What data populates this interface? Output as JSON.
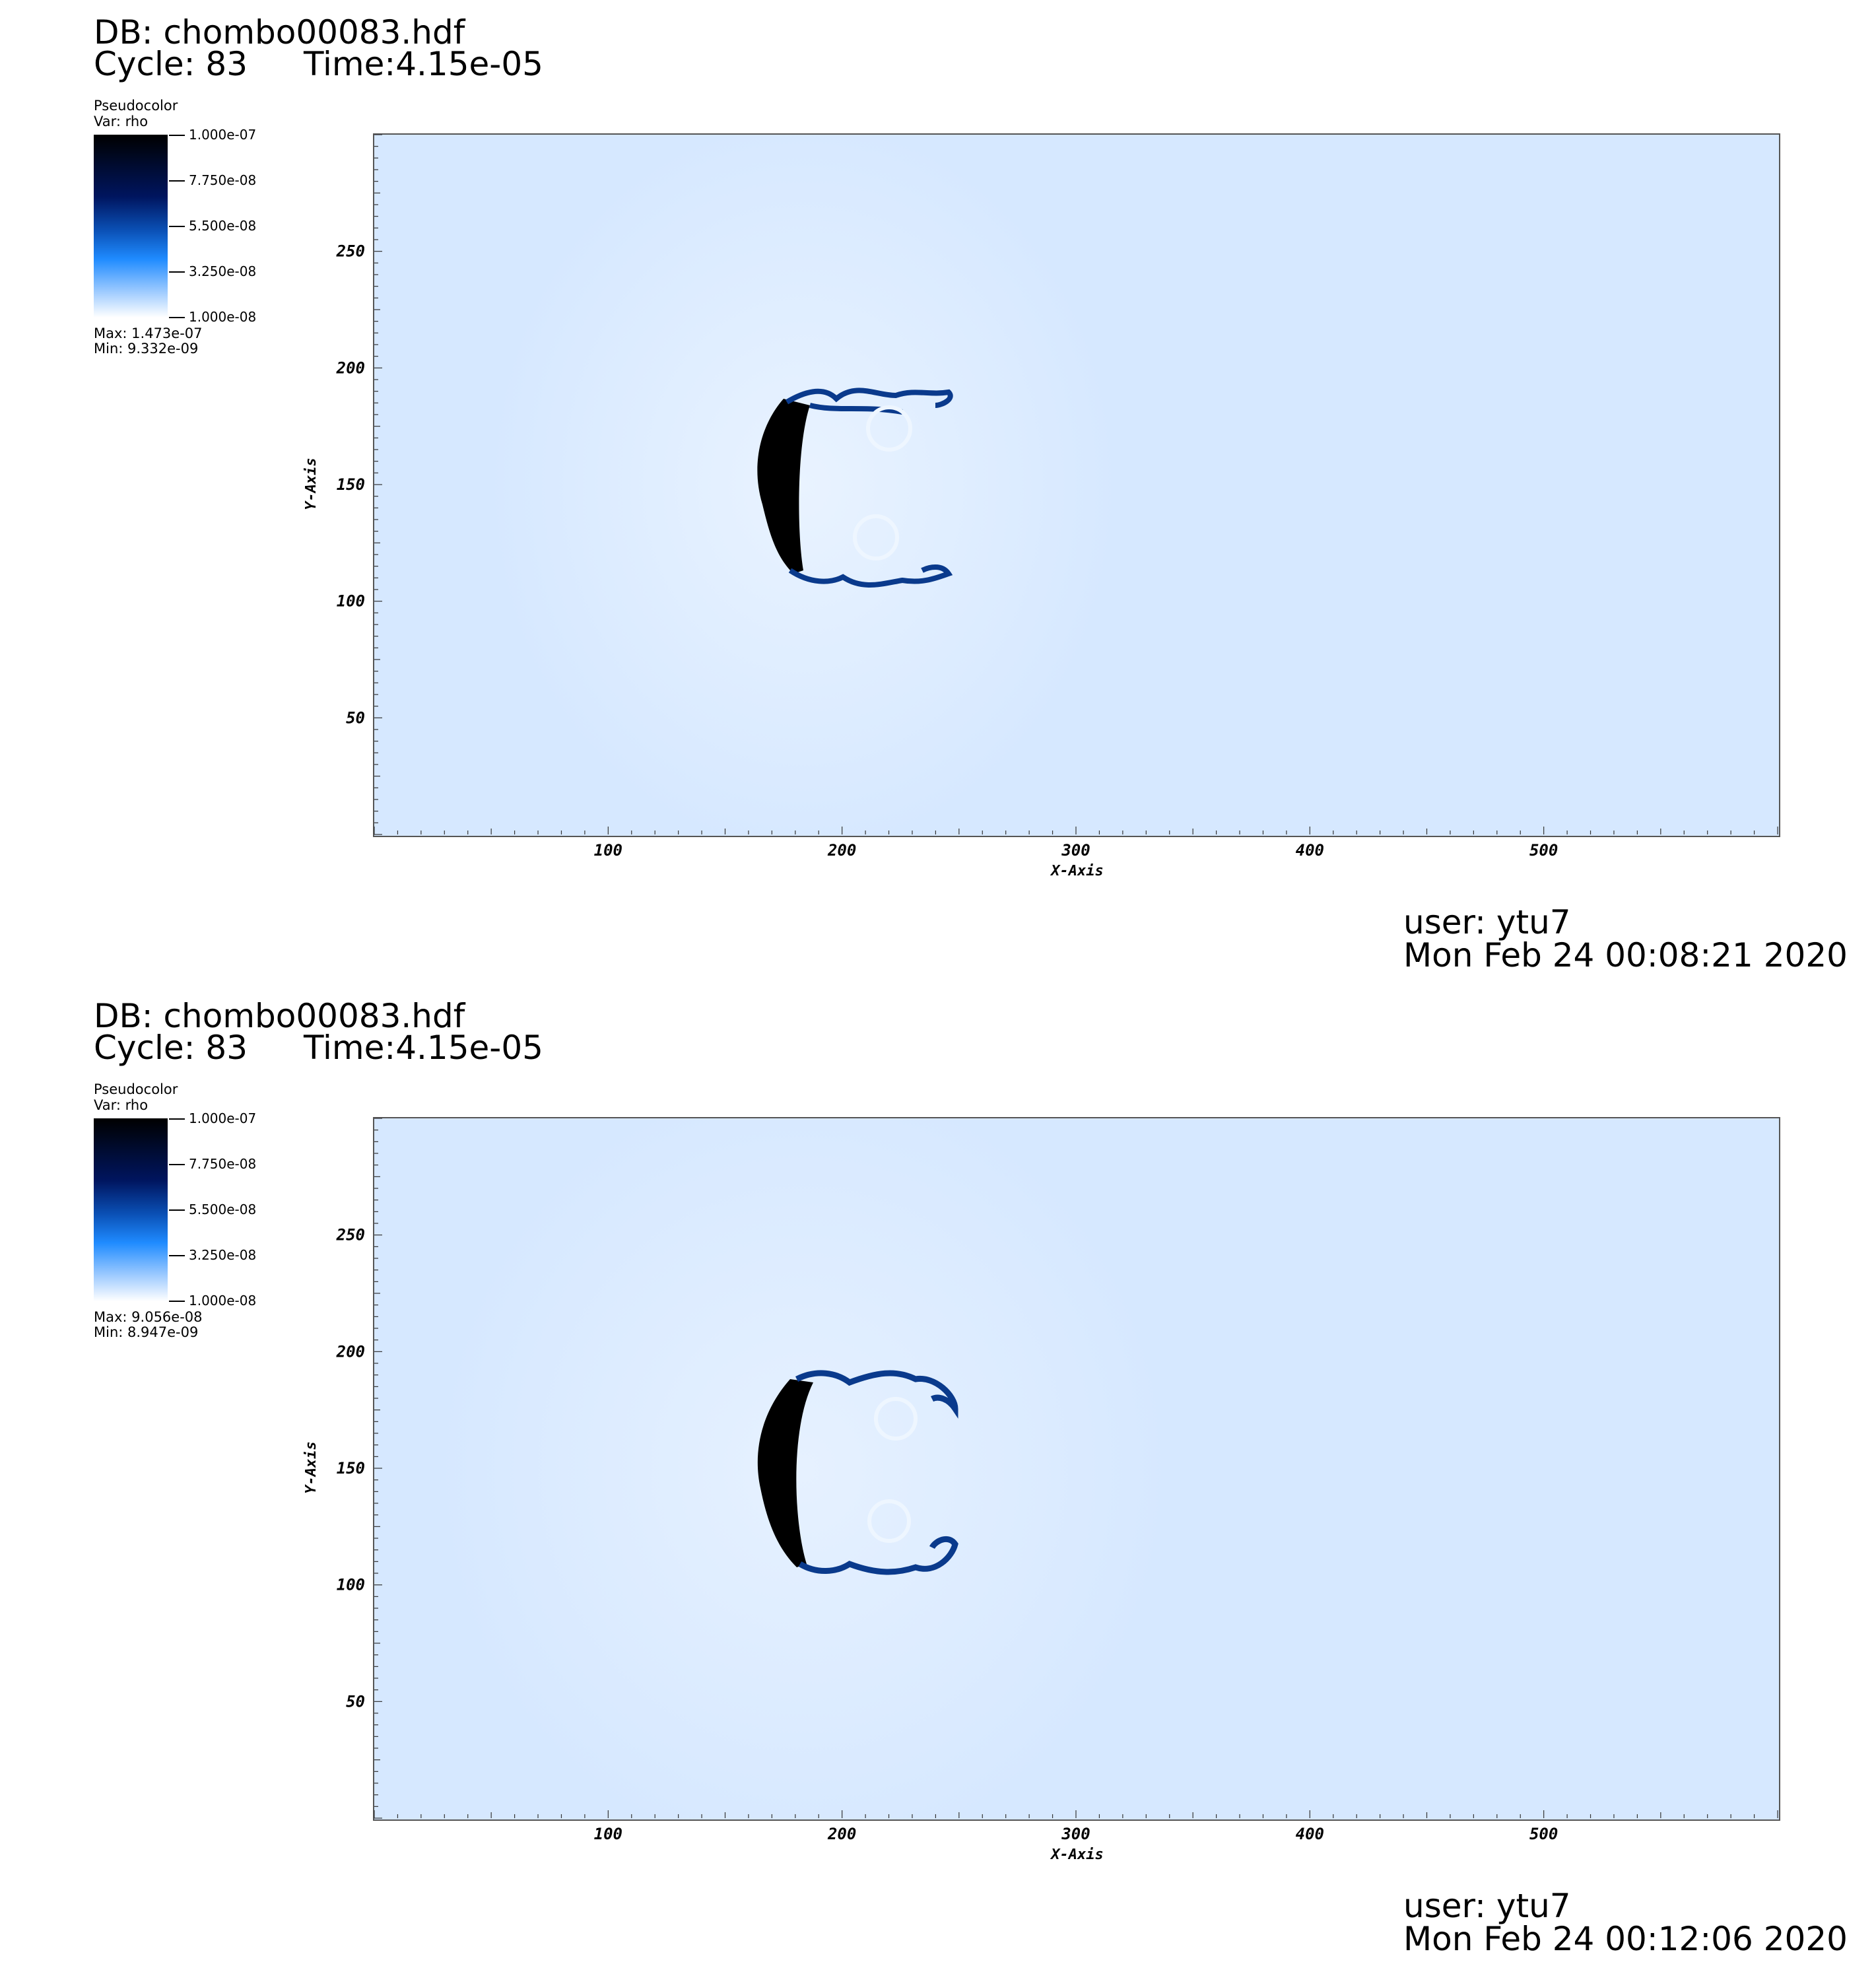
{
  "panels": [
    {
      "db_label": "DB: chombo00083.hdf",
      "cycle_label": "Cycle: 83",
      "time_label": "Time:4.15e-05",
      "legend": {
        "title": "Pseudocolor",
        "var": "Var: rho",
        "ticks": [
          "1.000e-07",
          "7.750e-08",
          "5.500e-08",
          "3.250e-08",
          "1.000e-08"
        ],
        "max": "Max:  1.473e-07",
        "min": "Min:  9.332e-09"
      },
      "user": "user: ytu7",
      "date": "Mon Feb 24 00:08:21 2020"
    },
    {
      "db_label": "DB: chombo00083.hdf",
      "cycle_label": "Cycle: 83",
      "time_label": "Time:4.15e-05",
      "legend": {
        "title": "Pseudocolor",
        "var": "Var: rho",
        "ticks": [
          "1.000e-07",
          "7.750e-08",
          "5.500e-08",
          "3.250e-08",
          "1.000e-08"
        ],
        "max": "Max:  9.056e-08",
        "min": "Min:  8.947e-09"
      },
      "user": "user: ytu7",
      "date": "Mon Feb 24 00:12:06 2020"
    }
  ],
  "chart_data": [
    {
      "type": "heatmap",
      "title": "",
      "xlabel": "X-Axis",
      "ylabel": "Y-Axis",
      "xlim": [
        0,
        600
      ],
      "ylim": [
        0,
        300
      ],
      "xticks": [
        100,
        200,
        300,
        400,
        500
      ],
      "yticks": [
        50,
        100,
        150,
        200,
        250
      ],
      "colorbar": {
        "var": "rho",
        "min": 1e-08,
        "max": 1e-07,
        "ticks": [
          1e-07,
          7.75e-08,
          5.5e-08,
          3.25e-08,
          1e-08
        ]
      },
      "colors": {
        "background": "#d6e8ff",
        "high": "#000000",
        "mid": "#0a4fb4",
        "low": "#ffffff"
      },
      "feature": {
        "shock_x": [
          165,
          185
        ],
        "y_range": [
          108,
          192
        ],
        "lobe_tip_x": 248
      }
    },
    {
      "type": "heatmap",
      "title": "",
      "xlabel": "X-Axis",
      "ylabel": "Y-Axis",
      "xlim": [
        0,
        600
      ],
      "ylim": [
        0,
        300
      ],
      "xticks": [
        100,
        200,
        300,
        400,
        500
      ],
      "yticks": [
        50,
        100,
        150,
        200,
        250
      ],
      "colorbar": {
        "var": "rho",
        "min": 1e-08,
        "max": 1e-07,
        "ticks": [
          1e-07,
          7.75e-08,
          5.5e-08,
          3.25e-08,
          1e-08
        ]
      },
      "colors": {
        "background": "#d6e8ff",
        "high": "#000000",
        "mid": "#0a4fb4",
        "low": "#ffffff"
      },
      "feature": {
        "shock_x": [
          165,
          185
        ],
        "y_range": [
          108,
          192
        ],
        "lobe_tip_x": 252
      }
    }
  ]
}
